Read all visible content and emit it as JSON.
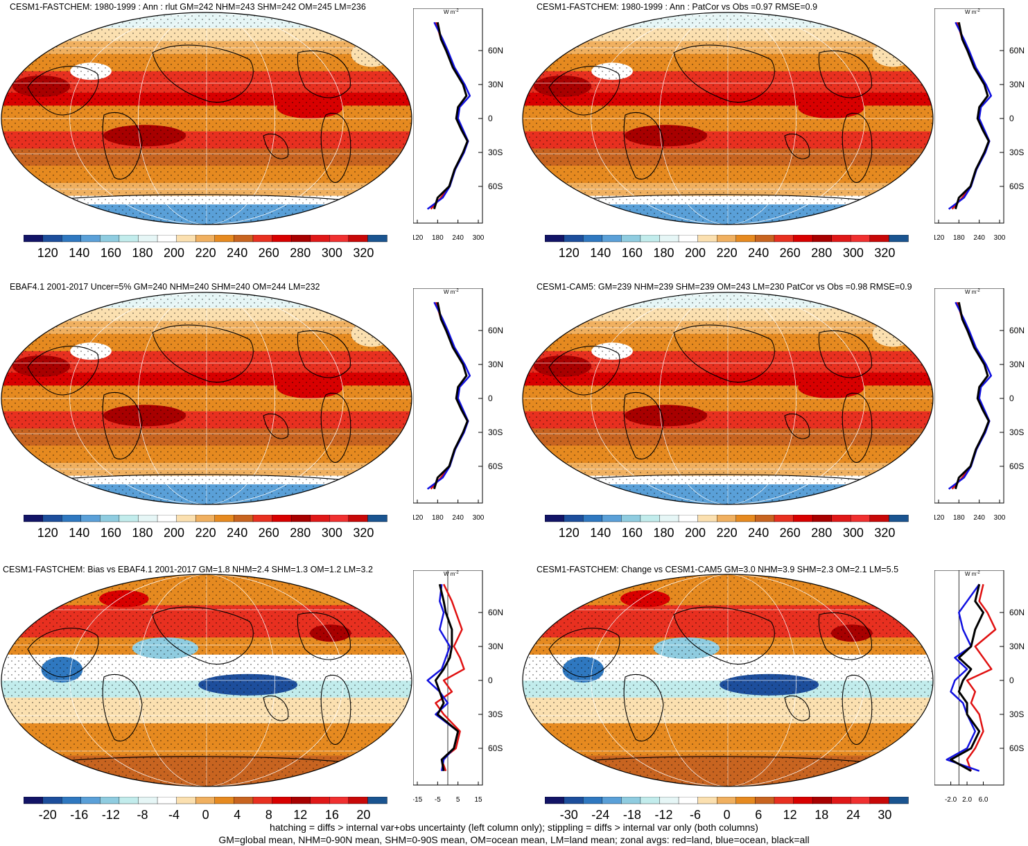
{
  "footnote": {
    "line1": "hatching = diffs > internal var+obs uncertainty (left column only); stippling = diffs > internal var only (both columns)",
    "line2": "GM=global mean, NHM=0-90N mean, SHM=0-90S mean, OM=ocean mean, LM=land mean; zonal avgs: red=land, blue=ocean, black=all"
  },
  "zonal_units": "W m",
  "zonal_units_sup": "-2",
  "lat_labels": [
    "60N",
    "30N",
    "0",
    "30S",
    "60S"
  ],
  "palettes": {
    "abs": [
      "#121466",
      "#1d4e9c",
      "#2f78c0",
      "#5aa0d8",
      "#8fcce0",
      "#c2ecec",
      "#e6f6f6",
      "#ffffff",
      "#fbe0b0",
      "#f0b060",
      "#e68a20",
      "#c86420",
      "#e83020",
      "#d80000",
      "#a80000",
      "#e01818",
      "#f03030",
      "#c80808",
      "#1a5490"
    ],
    "bias": [
      "#121466",
      "#1d4e9c",
      "#2f78c0",
      "#5aa0d8",
      "#8fcce0",
      "#c2ecec",
      "#e6f6f6",
      "#ffffff",
      "#fbe0b0",
      "#f0b060",
      "#e68a20",
      "#c86420",
      "#e83020",
      "#d80000",
      "#a80000",
      "#e01818",
      "#f03030",
      "#c80808",
      "#1a5490"
    ]
  },
  "panels": [
    {
      "title": "CESM1-FASTCHEM: 1980-1999 : Ann : rlut GM=242 NHM=243 SHM=242 OM=245 LM=236",
      "kind": "abs",
      "colorbar_labels": [
        "120",
        "140",
        "160",
        "180",
        "200",
        "220",
        "240",
        "260",
        "280",
        "300",
        "320"
      ],
      "zonal_ticks": [
        "120",
        "180",
        "240",
        "300"
      ],
      "zonal_range": [
        120,
        300
      ]
    },
    {
      "title": "CESM1-FASTCHEM: 1980-1999 : Ann : PatCor vs Obs =0.97 RMSE=0.9",
      "kind": "abs",
      "colorbar_labels": [
        "120",
        "140",
        "160",
        "180",
        "200",
        "220",
        "240",
        "260",
        "280",
        "300",
        "320"
      ],
      "zonal_ticks": [
        "120",
        "180",
        "240",
        "300"
      ],
      "zonal_range": [
        120,
        300
      ]
    },
    {
      "title": "EBAF4.1 2001-2017 Uncer=5% GM=240 NHM=240 SHM=240 OM=244 LM=232",
      "kind": "abs",
      "colorbar_labels": [
        "120",
        "140",
        "160",
        "180",
        "200",
        "220",
        "240",
        "260",
        "280",
        "300",
        "320"
      ],
      "zonal_ticks": [
        "120",
        "180",
        "240",
        "300"
      ],
      "zonal_range": [
        120,
        300
      ]
    },
    {
      "title": "CESM1-CAM5: GM=239 NHM=239 SHM=239 OM=243 LM=230 PatCor vs Obs =0.98 RMSE=0.9",
      "kind": "abs",
      "colorbar_labels": [
        "120",
        "140",
        "160",
        "180",
        "200",
        "220",
        "240",
        "260",
        "280",
        "300",
        "320"
      ],
      "zonal_ticks": [
        "120",
        "180",
        "240",
        "300"
      ],
      "zonal_range": [
        120,
        300
      ]
    },
    {
      "title": "CESM1-FASTCHEM: Bias vs EBAF4.1 2001-2017 GM=1.8 NHM=2.4 SHM=1.3 OM=1.2 LM=3.2",
      "kind": "bias",
      "colorbar_labels": [
        "-20",
        "-16",
        "-12",
        "-8",
        "-4",
        "0",
        "4",
        "8",
        "12",
        "16",
        "20"
      ],
      "zonal_ticks": [
        "-15",
        "-5",
        "5",
        "15"
      ],
      "zonal_range": [
        -15,
        15
      ]
    },
    {
      "title": "CESM1-FASTCHEM: Change vs CESM1-CAM5 GM=3.0 NHM=3.9 SHM=2.3 OM=2.1 LM=5.5",
      "kind": "bias",
      "colorbar_labels": [
        "-30",
        "-24",
        "-18",
        "-12",
        "-6",
        "0",
        "6",
        "12",
        "18",
        "24",
        "30"
      ],
      "zonal_ticks": [
        "-2.0",
        "2.0",
        "6.0"
      ],
      "zonal_range": [
        -5,
        10
      ]
    }
  ],
  "chart_data": [
    {
      "type": "heatmap",
      "title": "CESM1-FASTCHEM: 1980-1999 : Ann : rlut GM=242 NHM=243 SHM=242 OM=245 LM=236",
      "colorbar": [
        120,
        140,
        160,
        180,
        200,
        220,
        240,
        260,
        280,
        300,
        320
      ],
      "zonal_mean": {
        "type": "line",
        "y_labels": [
          "60N",
          "30N",
          "0",
          "30S",
          "60S"
        ],
        "xlim": [
          120,
          300
        ],
        "series": [
          {
            "lat": [
              85,
              70,
              60,
              45,
              30,
              20,
              10,
              0,
              -10,
              -20,
              -30,
              -45,
              -60,
              -70,
              -80
            ],
            "values": [
              175,
              190,
              205,
              225,
              255,
              265,
              240,
              235,
              250,
              270,
              255,
              230,
              215,
              190,
              160
            ]
          },
          {
            "lat": [
              85,
              70,
              60,
              45,
              30,
              20,
              10,
              0,
              -10,
              -20,
              -30,
              -45,
              -60,
              -70,
              -80
            ],
            "values": [
              170,
              195,
              210,
              230,
              260,
              275,
              245,
              240,
              255,
              270,
              258,
              232,
              216,
              195,
              150
            ]
          },
          {
            "lat": [
              85,
              70,
              60,
              45,
              30,
              20,
              10,
              0,
              -10,
              -20,
              -30,
              -45,
              -60,
              -70,
              -80
            ],
            "values": [
              180,
              190,
              205,
              225,
              255,
              265,
              240,
              235,
              250,
              268,
              255,
              230,
              214,
              180,
              170
            ]
          }
        ]
      }
    },
    {
      "type": "heatmap",
      "title": "CESM1-FASTCHEM: 1980-1999 : Ann : PatCor vs Obs =0.97 RMSE=0.9",
      "colorbar": [
        120,
        140,
        160,
        180,
        200,
        220,
        240,
        260,
        280,
        300,
        320
      ],
      "zonal_mean": {
        "type": "line",
        "y_labels": [
          "60N",
          "30N",
          "0",
          "30S",
          "60S"
        ],
        "xlim": [
          120,
          300
        ]
      }
    },
    {
      "type": "heatmap",
      "title": "EBAF4.1 2001-2017 Uncer=5% GM=240 NHM=240 SHM=240 OM=244 LM=232",
      "colorbar": [
        120,
        140,
        160,
        180,
        200,
        220,
        240,
        260,
        280,
        300,
        320
      ],
      "zonal_mean": {
        "type": "line",
        "y_labels": [
          "60N",
          "30N",
          "0",
          "30S",
          "60S"
        ],
        "xlim": [
          120,
          300
        ]
      }
    },
    {
      "type": "heatmap",
      "title": "CESM1-CAM5: GM=239 NHM=239 SHM=239 OM=243 LM=230 PatCor vs Obs =0.98 RMSE=0.9",
      "colorbar": [
        120,
        140,
        160,
        180,
        200,
        220,
        240,
        260,
        280,
        300,
        320
      ],
      "zonal_mean": {
        "type": "line",
        "y_labels": [
          "60N",
          "30N",
          "0",
          "30S",
          "60S"
        ],
        "xlim": [
          120,
          300
        ]
      }
    },
    {
      "type": "heatmap",
      "title": "CESM1-FASTCHEM: Bias vs EBAF4.1 2001-2017 GM=1.8 NHM=2.4 SHM=1.3 OM=1.2 LM=3.2",
      "colorbar": [
        -20,
        -16,
        -12,
        -8,
        -4,
        0,
        4,
        8,
        12,
        16,
        20
      ],
      "zonal_mean": {
        "type": "line",
        "y_labels": [
          "60N",
          "30N",
          "0",
          "30S",
          "60S"
        ],
        "xlim": [
          -15,
          15
        ],
        "series": [
          {
            "lat": [
              85,
              70,
              60,
              45,
              30,
              20,
              10,
              0,
              -10,
              -20,
              -30,
              -45,
              -60,
              -70,
              -80
            ],
            "values": [
              -2,
              2,
              4,
              7,
              3,
              6,
              8,
              -2,
              2,
              -6,
              -2,
              6,
              4,
              -3,
              -1
            ]
          },
          {
            "lat": [
              85,
              70,
              60,
              45,
              30,
              20,
              10,
              0,
              -10,
              -20,
              -30,
              -45,
              -60,
              -70,
              -80
            ],
            "values": [
              -3,
              -4,
              -2,
              -4,
              1,
              -1,
              -3,
              -10,
              -4,
              0,
              -6,
              5,
              3,
              -2,
              -3
            ]
          },
          {
            "lat": [
              85,
              70,
              60,
              45,
              30,
              20,
              10,
              0,
              -10,
              -20,
              -30,
              -45,
              -60,
              -70,
              -80
            ],
            "values": [
              -4,
              -2,
              -1,
              2,
              2,
              1,
              -2,
              -6,
              -4,
              -2,
              -5,
              5,
              3,
              -3,
              -2
            ]
          }
        ]
      }
    },
    {
      "type": "heatmap",
      "title": "CESM1-FASTCHEM: Change vs CESM1-CAM5 GM=3.0 NHM=3.9 SHM=2.3 OM=2.1 LM=5.5",
      "colorbar": [
        -30,
        -24,
        -18,
        -12,
        -6,
        0,
        6,
        12,
        18,
        24,
        30
      ],
      "zonal_mean": {
        "type": "line",
        "y_labels": [
          "60N",
          "30N",
          "0",
          "30S",
          "60S"
        ],
        "xlim": [
          -5,
          10
        ],
        "series": [
          {
            "lat": [
              85,
              70,
              60,
              45,
              30,
              20,
              10,
              0,
              -10,
              -20,
              -30,
              -45,
              -60,
              -70,
              -80
            ],
            "values": [
              6,
              5,
              7,
              9,
              4,
              6,
              8,
              2,
              4,
              3,
              5,
              6,
              4,
              2,
              3
            ]
          },
          {
            "lat": [
              85,
              70,
              60,
              45,
              30,
              20,
              10,
              0,
              -10,
              -20,
              -30,
              -45,
              -60,
              -70,
              -80
            ],
            "values": [
              5,
              2,
              0,
              1,
              3,
              -1,
              2,
              -1,
              -2,
              1,
              2,
              4,
              2,
              -3,
              5
            ]
          },
          {
            "lat": [
              85,
              70,
              60,
              45,
              30,
              20,
              10,
              0,
              -10,
              -20,
              -30,
              -45,
              -60,
              -70,
              -80
            ],
            "values": [
              5,
              4,
              6,
              4,
              3,
              0,
              3,
              1,
              0,
              2,
              2,
              5,
              3,
              -2,
              3
            ]
          }
        ]
      }
    }
  ]
}
